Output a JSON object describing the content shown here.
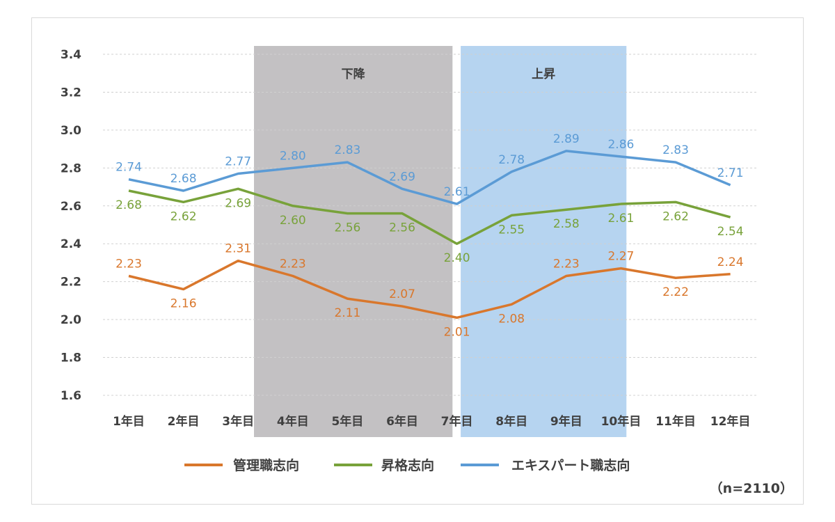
{
  "chart_data": {
    "type": "line",
    "categories": [
      "1年目",
      "2年目",
      "3年目",
      "4年目",
      "5年目",
      "6年目",
      "7年目",
      "8年目",
      "9年目",
      "10年目",
      "11年目",
      "12年目"
    ],
    "series": [
      {
        "name": "管理職志向",
        "color": "#D9772C",
        "values": [
          2.23,
          2.16,
          2.31,
          2.23,
          2.11,
          2.07,
          2.01,
          2.08,
          2.23,
          2.27,
          2.22,
          2.24
        ]
      },
      {
        "name": "昇格志向",
        "color": "#78A23A",
        "values": [
          2.68,
          2.62,
          2.69,
          2.6,
          2.56,
          2.56,
          2.4,
          2.55,
          2.58,
          2.61,
          2.62,
          2.54
        ]
      },
      {
        "name": "エキスパート職志向",
        "color": "#5B9BD5",
        "values": [
          2.74,
          2.68,
          2.77,
          2.8,
          2.83,
          2.69,
          2.61,
          2.78,
          2.89,
          2.86,
          2.83,
          2.71
        ]
      }
    ],
    "ylim": [
      1.6,
      3.4
    ],
    "yticks": [
      "1.6",
      "1.8",
      "2.0",
      "2.2",
      "2.4",
      "2.6",
      "2.8",
      "3.0",
      "3.2",
      "3.4"
    ],
    "grid": true,
    "legend": "bottom",
    "shaded_regions": [
      {
        "label": "下降",
        "color": "#C3C1C3"
      },
      {
        "label": "上昇",
        "color": "#B6D4F0"
      }
    ],
    "note": "（n=2110）"
  }
}
